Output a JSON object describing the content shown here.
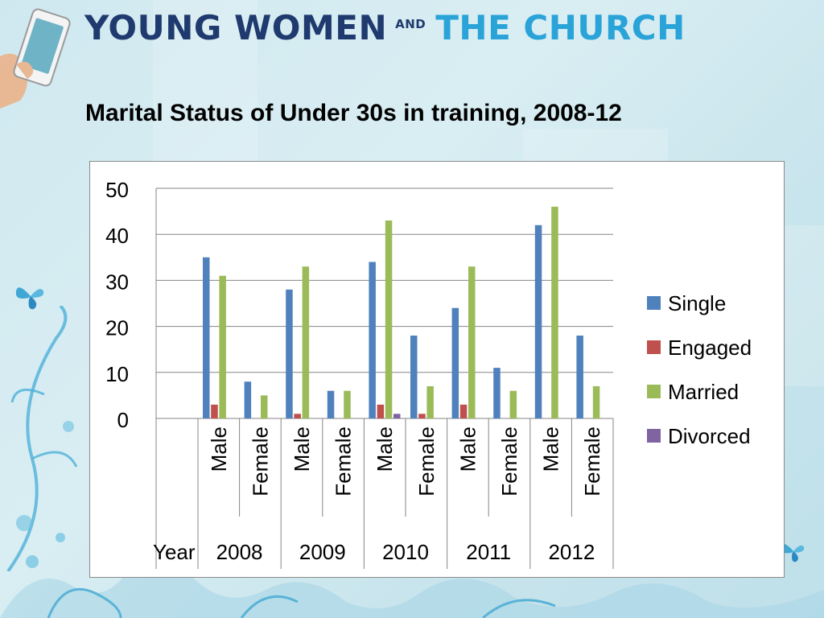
{
  "brand": {
    "part1": "YOUNG WOMEN",
    "conj": "AND",
    "part2": "THE CHURCH"
  },
  "slide_title": "Marital Status of Under 30s in training, 2008-12",
  "colors": {
    "single": "#4f81bd",
    "engaged": "#c0504d",
    "married": "#9bbb59",
    "divorced": "#8064a2",
    "brand_dark": "#1f3a6e",
    "brand_light": "#2aa3d8"
  },
  "chart_data": {
    "type": "bar",
    "title": "",
    "ylim": [
      0,
      50
    ],
    "yticks": [
      0,
      10,
      20,
      30,
      40,
      50
    ],
    "grid": true,
    "legend_position": "right",
    "year_axis_label": "Year",
    "years": [
      "2008",
      "2009",
      "2010",
      "2011",
      "2012"
    ],
    "genders": [
      "Male",
      "Female"
    ],
    "categories": [
      "2008 Male",
      "2008 Female",
      "2009 Male",
      "2009 Female",
      "2010 Male",
      "2010 Female",
      "2011 Male",
      "2011 Female",
      "2012 Male",
      "2012 Female"
    ],
    "series": [
      {
        "name": "Single",
        "color": "#4f81bd",
        "values": [
          35,
          8,
          28,
          6,
          34,
          18,
          24,
          11,
          42,
          18
        ]
      },
      {
        "name": "Engaged",
        "color": "#c0504d",
        "values": [
          3,
          0,
          1,
          0,
          3,
          1,
          3,
          0,
          0,
          0
        ]
      },
      {
        "name": "Married",
        "color": "#9bbb59",
        "values": [
          31,
          5,
          33,
          6,
          43,
          7,
          33,
          6,
          46,
          7
        ]
      },
      {
        "name": "Divorced",
        "color": "#8064a2",
        "values": [
          0,
          0,
          0,
          0,
          1,
          0,
          0,
          0,
          0,
          0
        ]
      }
    ]
  }
}
